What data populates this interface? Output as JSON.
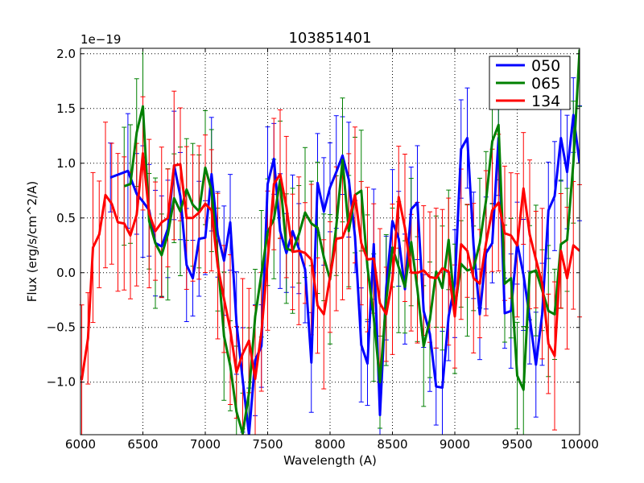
{
  "chart_data": {
    "type": "line",
    "title": "103851401",
    "xlabel": "Wavelength (A)",
    "ylabel": "Flux (erg/s/cm^2/A)",
    "y_scale_offset": "1e−19",
    "xlim": [
      6000,
      10000
    ],
    "ylim": [
      -1.48,
      2.05
    ],
    "x_ticks": [
      6000,
      6500,
      7000,
      7500,
      8000,
      8500,
      9000,
      9500,
      10000
    ],
    "x_tick_labels": [
      "6000",
      "6500",
      "7000",
      "7500",
      "8000",
      "8500",
      "9000",
      "9500",
      "10000"
    ],
    "y_ticks": [
      -1.0,
      -0.5,
      0.0,
      0.5,
      1.0,
      1.5,
      2.0
    ],
    "y_tick_labels": [
      "−1.0",
      "−0.5",
      "0.0",
      "0.5",
      "1.0",
      "1.5",
      "2.0"
    ],
    "grid": true,
    "legend_position": "top-right",
    "series": [
      {
        "name": "050",
        "color": "#0000ff",
        "x": [
          6240,
          6380,
          6450,
          6500,
          6550,
          6600,
          6650,
          6700,
          6750,
          6800,
          6850,
          6900,
          6950,
          7000,
          7050,
          7100,
          7150,
          7200,
          7250,
          7300,
          7350,
          7400,
          7450,
          7500,
          7550,
          7600,
          7650,
          7700,
          7750,
          7800,
          7850,
          7900,
          7950,
          8000,
          8050,
          8100,
          8150,
          8200,
          8250,
          8300,
          8350,
          8400,
          8450,
          8500,
          8550,
          8600,
          8650,
          8700,
          8750,
          8800,
          8850,
          8900,
          8950,
          9000,
          9050,
          9100,
          9150,
          9200,
          9250,
          9300,
          9350,
          9400,
          9450,
          9500,
          9550,
          9600,
          9650,
          9700,
          9750,
          9800,
          9850,
          9900,
          9950,
          10000
        ],
        "y": [
          0.87,
          0.93,
          0.72,
          0.65,
          0.57,
          0.27,
          0.24,
          0.4,
          0.98,
          0.7,
          0.07,
          -0.05,
          0.31,
          0.32,
          0.9,
          0.35,
          0.11,
          0.46,
          -0.46,
          -0.98,
          -1.48,
          -0.8,
          -0.67,
          0.81,
          1.04,
          0.38,
          0.18,
          0.38,
          0.22,
          0.03,
          -0.82,
          0.82,
          0.56,
          0.78,
          0.92,
          1.07,
          0.85,
          0.33,
          -0.66,
          -0.83,
          0.26,
          -1.3,
          -0.14,
          0.47,
          0.31,
          -0.15,
          0.58,
          0.64,
          -0.35,
          -0.56,
          -1.04,
          -1.05,
          -0.4,
          -0.1,
          1.13,
          1.23,
          0.25,
          -0.38,
          0.18,
          0.27,
          1.23,
          -0.37,
          -0.35,
          0.27,
          -0.02,
          -0.41,
          -0.84,
          -0.38,
          0.57,
          0.7,
          1.23,
          0.92,
          1.44,
          1.0
        ]
      },
      {
        "name": "065",
        "color": "#008000",
        "x": [
          6350,
          6400,
          6450,
          6500,
          6550,
          6600,
          6650,
          6700,
          6750,
          6800,
          6850,
          6900,
          6950,
          7000,
          7050,
          7100,
          7150,
          7200,
          7250,
          7300,
          7350,
          7400,
          7450,
          7500,
          7550,
          7600,
          7650,
          7700,
          7750,
          7800,
          7850,
          7900,
          7950,
          8000,
          8050,
          8100,
          8150,
          8200,
          8250,
          8300,
          8350,
          8400,
          8450,
          8500,
          8550,
          8600,
          8650,
          8700,
          8750,
          8800,
          8850,
          8900,
          8950,
          9000,
          9050,
          9100,
          9150,
          9200,
          9250,
          9300,
          9350,
          9400,
          9450,
          9500,
          9550,
          9600,
          9650,
          9700,
          9750,
          9800,
          9850,
          9900,
          9950,
          10000
        ],
        "y": [
          0.79,
          0.81,
          1.28,
          1.52,
          0.47,
          0.27,
          0.16,
          0.35,
          0.68,
          0.56,
          0.76,
          0.62,
          0.56,
          0.96,
          0.75,
          0.12,
          -0.58,
          -0.85,
          -1.27,
          -1.47,
          -1.1,
          -0.4,
          -0.01,
          0.37,
          0.49,
          0.85,
          0.22,
          0.2,
          0.35,
          0.55,
          0.45,
          0.41,
          0.14,
          -0.06,
          0.43,
          1.03,
          0.38,
          0.71,
          0.75,
          0.05,
          -0.41,
          -1.0,
          -0.25,
          0.23,
          0.05,
          -0.13,
          0.28,
          -0.15,
          -0.67,
          -0.43,
          0.01,
          -0.14,
          0.3,
          -0.33,
          0.08,
          0.02,
          0.04,
          0.27,
          0.66,
          1.2,
          1.35,
          -0.1,
          -0.05,
          -0.94,
          -1.07,
          0.0,
          0.02,
          -0.16,
          -0.35,
          -0.38,
          0.26,
          0.3,
          1.01,
          2.04
        ]
      },
      {
        "name": "134",
        "color": "#ff0000",
        "x": [
          6010,
          6060,
          6100,
          6150,
          6200,
          6250,
          6300,
          6350,
          6400,
          6450,
          6500,
          6550,
          6600,
          6650,
          6700,
          6750,
          6800,
          6850,
          6900,
          6950,
          7000,
          7050,
          7100,
          7150,
          7200,
          7250,
          7300,
          7350,
          7400,
          7450,
          7500,
          7550,
          7600,
          7650,
          7700,
          7750,
          7800,
          7850,
          7900,
          7950,
          8000,
          8050,
          8100,
          8150,
          8200,
          8250,
          8300,
          8350,
          8400,
          8450,
          8500,
          8550,
          8600,
          8650,
          8700,
          8750,
          8800,
          8850,
          8900,
          8950,
          9000,
          9050,
          9100,
          9150,
          9200,
          9250,
          9300,
          9350,
          9400,
          9450,
          9500,
          9550,
          9600,
          9650,
          9700,
          9750,
          9800,
          9850,
          9900,
          9950,
          10000
        ],
        "y": [
          -0.98,
          -0.6,
          0.23,
          0.35,
          0.71,
          0.63,
          0.46,
          0.45,
          0.34,
          0.53,
          1.09,
          0.54,
          0.38,
          0.46,
          0.5,
          0.98,
          0.99,
          0.5,
          0.5,
          0.55,
          0.63,
          0.57,
          0.06,
          -0.24,
          -0.52,
          -0.91,
          -0.74,
          -0.62,
          -0.97,
          -0.54,
          0.11,
          0.81,
          0.9,
          0.6,
          0.19,
          0.2,
          0.18,
          0.12,
          -0.3,
          -0.38,
          -0.04,
          0.31,
          0.32,
          0.47,
          0.71,
          0.27,
          0.12,
          0.13,
          -0.28,
          -0.38,
          -0.06,
          0.69,
          0.41,
          0.0,
          0.0,
          0.02,
          -0.04,
          -0.05,
          0.04,
          0.01,
          -0.4,
          0.26,
          0.2,
          -0.05,
          -0.1,
          0.27,
          0.57,
          0.64,
          0.36,
          0.34,
          0.25,
          0.77,
          0.35,
          0.12,
          -0.1,
          -0.65,
          -0.76,
          0.2,
          -0.05,
          0.25,
          0.2
        ]
      }
    ]
  }
}
